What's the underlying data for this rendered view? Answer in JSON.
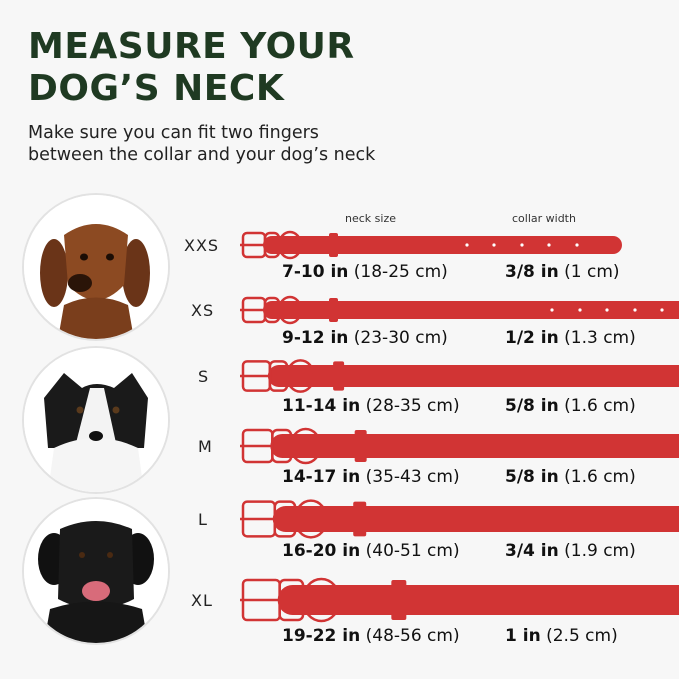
{
  "title_lines": [
    "MEASURE YOUR",
    "DOG’S  NECK"
  ],
  "subtitle_lines": [
    "Make sure you can fit two fingers",
    "between the collar and your dog’s neck"
  ],
  "headers": {
    "neck": "neck size",
    "width": "collar width"
  },
  "collar_color": "#d13434",
  "title_color": "#1f3a22",
  "dogs": [
    "dachshund-photo",
    "border-collie-photo",
    "black-labrador-photo"
  ],
  "sizes": [
    {
      "label": "XXS",
      "neck_in": "7-10 in",
      "neck_cm": "(18-25 cm)",
      "width_in": "3/8 in",
      "width_cm": "(1 cm)"
    },
    {
      "label": "XS",
      "neck_in": "9-12 in",
      "neck_cm": "(23-30 cm)",
      "width_in": "1/2 in",
      "width_cm": "(1.3 cm)"
    },
    {
      "label": "S",
      "neck_in": "11-14 in",
      "neck_cm": "(28-35 cm)",
      "width_in": "5/8 in",
      "width_cm": "(1.6 cm)"
    },
    {
      "label": "M",
      "neck_in": "14-17 in",
      "neck_cm": "(35-43 cm)",
      "width_in": "5/8 in",
      "width_cm": "(1.6 cm)"
    },
    {
      "label": "L",
      "neck_in": "16-20 in",
      "neck_cm": "(40-51 cm)",
      "width_in": "3/4 in",
      "width_cm": "(1.9 cm)"
    },
    {
      "label": "XL",
      "neck_in": "19-22 in",
      "neck_cm": "(48-56 cm)",
      "width_in": "1 in",
      "width_cm": "(2.5 cm)"
    }
  ]
}
